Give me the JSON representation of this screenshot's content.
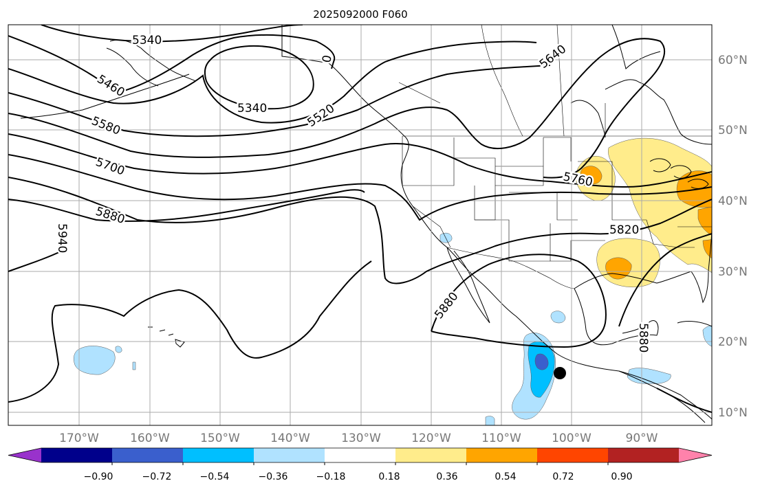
{
  "title": "2025092000 F060",
  "longitude_labels": [
    "170°W",
    "160°W",
    "150°W",
    "140°W",
    "130°W",
    "120°W",
    "110°W",
    "100°W",
    "90°W"
  ],
  "latitude_labels": [
    "60°N",
    "50°N",
    "40°N",
    "30°N",
    "20°N",
    "10°N"
  ],
  "contour_labels": [
    "5340",
    "5460",
    "5580",
    "5700",
    "5880",
    "5940",
    "5340",
    "5520",
    "5640",
    "5760",
    "5820",
    "5880",
    "5880",
    "0"
  ],
  "colorbar": {
    "tick_labels": [
      "−0.90",
      "−0.72",
      "−0.54",
      "−0.36",
      "−0.18",
      "0.18",
      "0.36",
      "0.54",
      "0.72",
      "0.90"
    ],
    "colors": [
      "#9932cc",
      "#00008b",
      "#3a5fcd",
      "#00bfff",
      "#b0e2ff",
      "#ffffff",
      "#ffec8b",
      "#ffa500",
      "#ff4500",
      "#b22222",
      "#ff82ab"
    ]
  },
  "marker": "filled-circle"
}
